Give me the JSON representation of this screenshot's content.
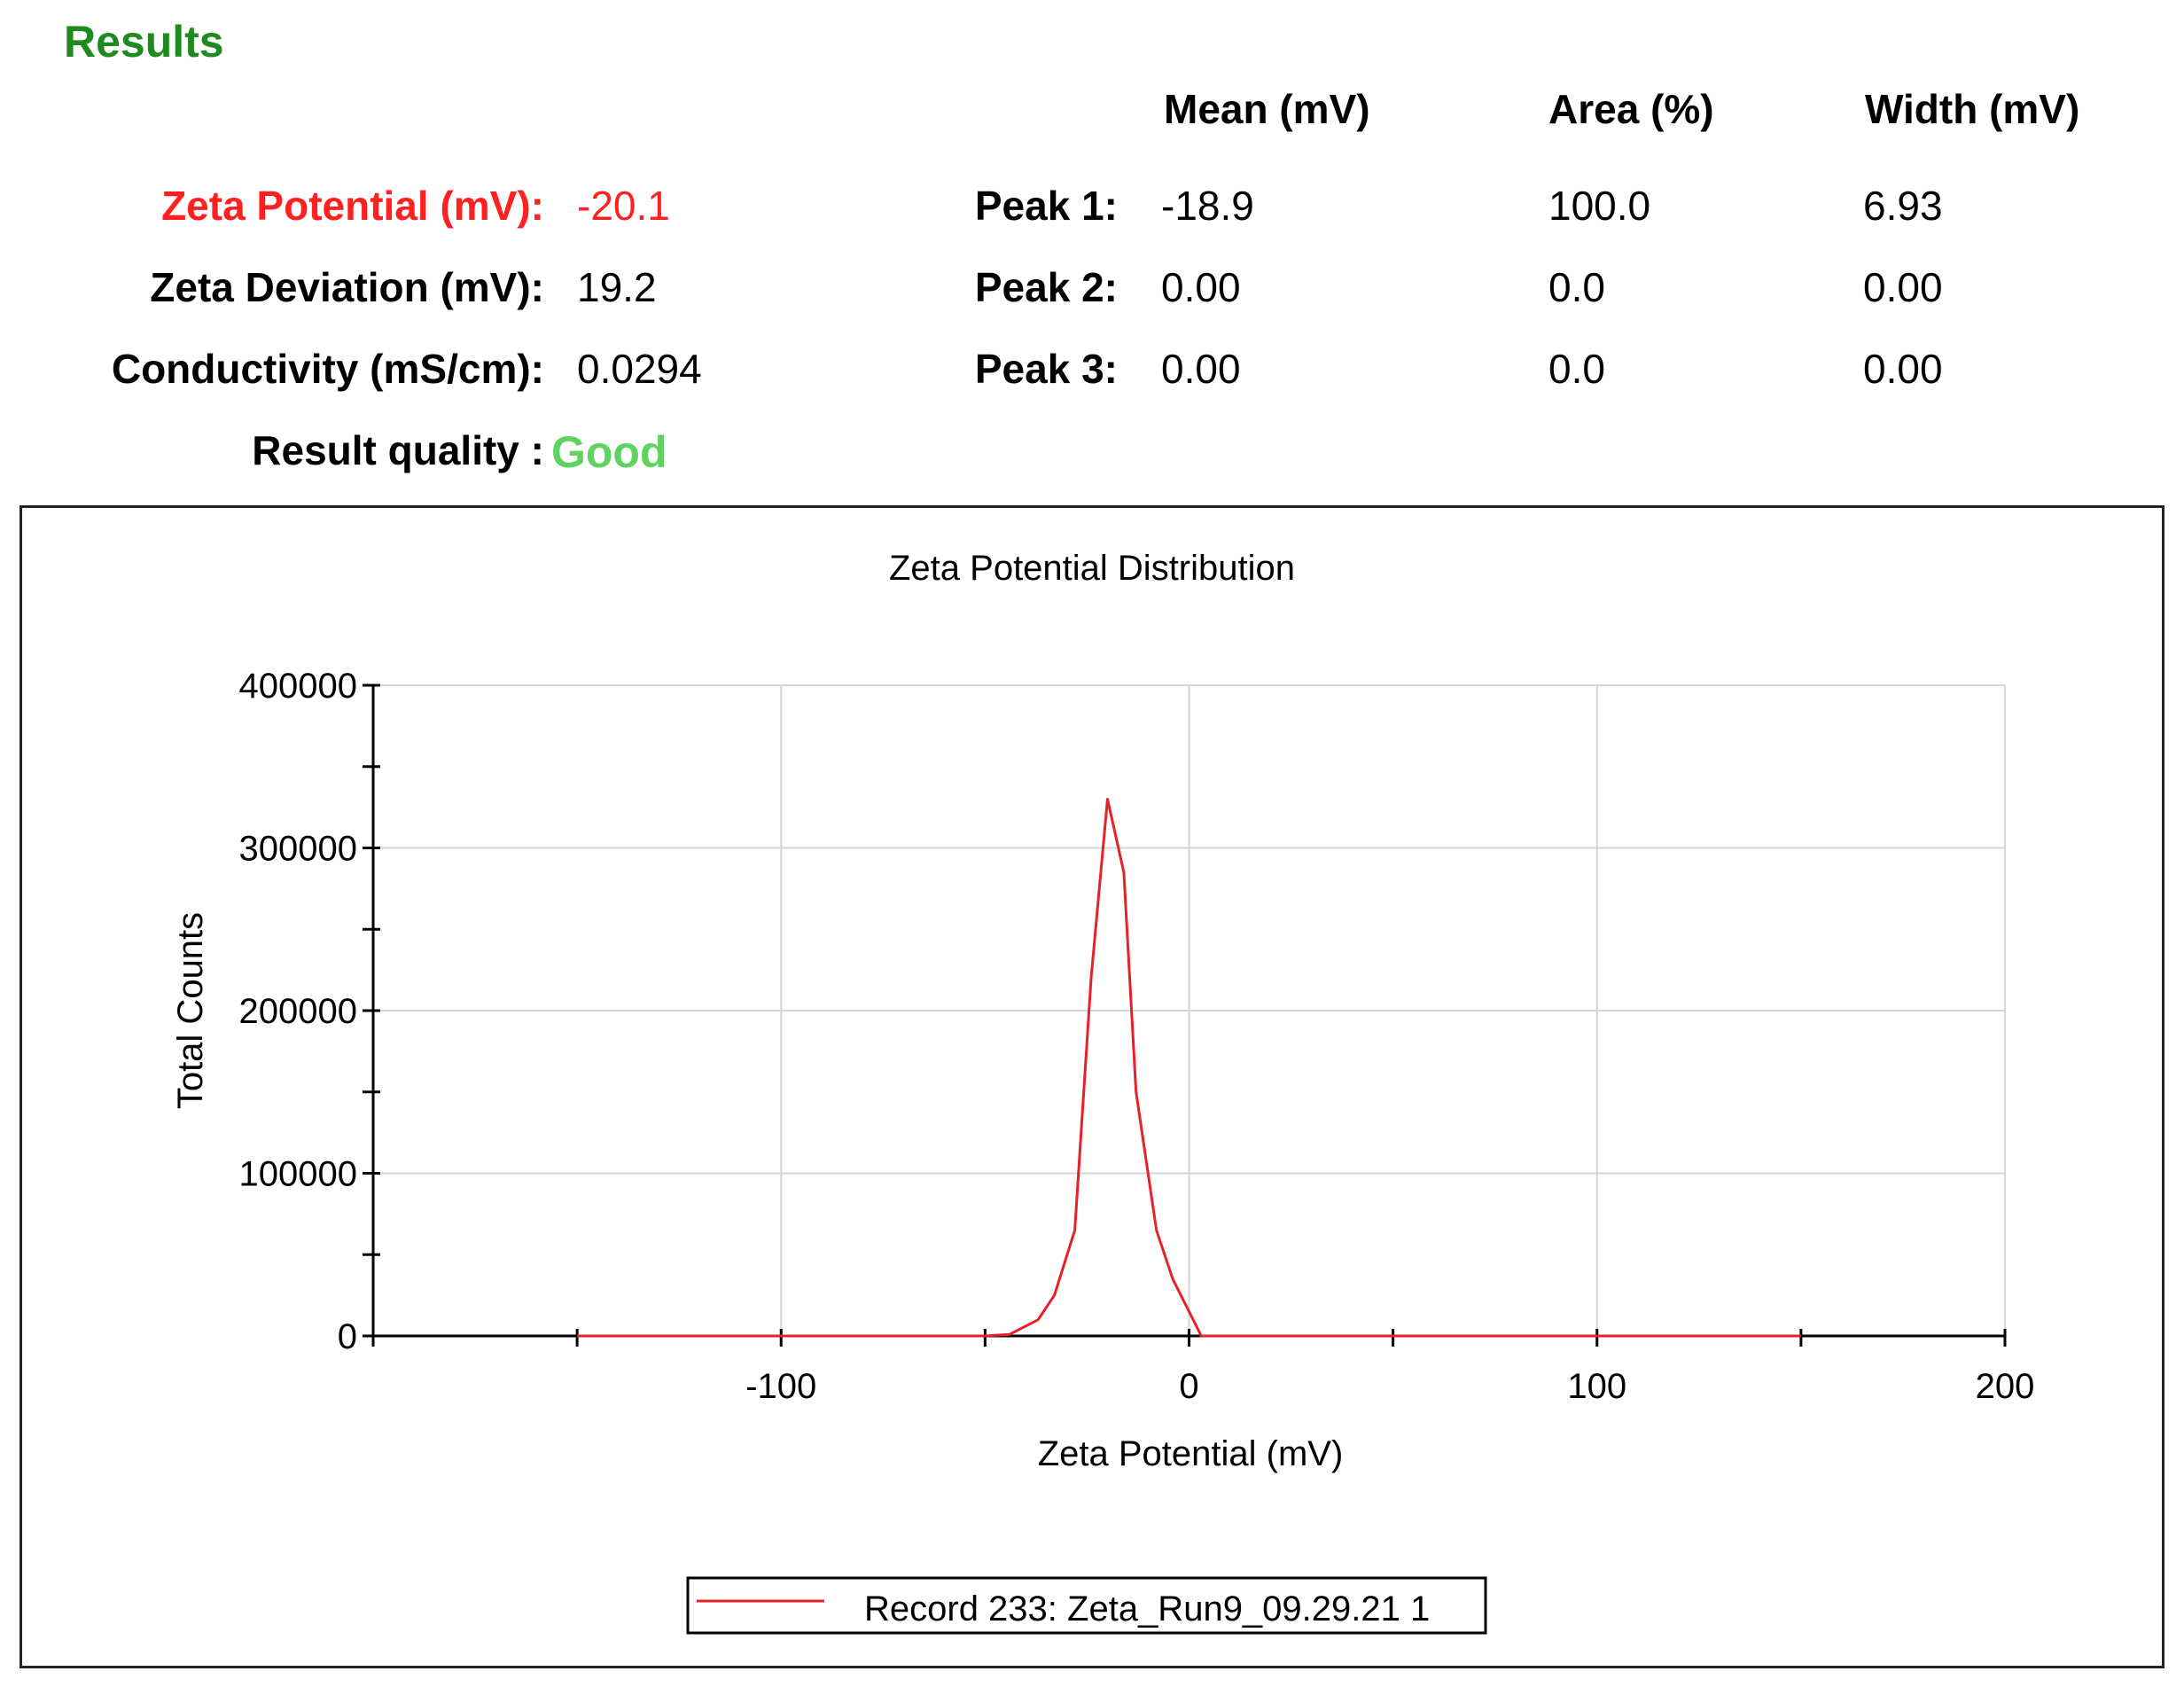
{
  "results": {
    "heading": "Results",
    "columns": {
      "mean": "Mean (mV)",
      "area": "Area (%)",
      "width": "Width (mV)"
    },
    "summary": [
      {
        "label": "Zeta Potential (mV):",
        "value": "-20.1"
      },
      {
        "label": "Zeta Deviation (mV):",
        "value": "19.2"
      },
      {
        "label": "Conductivity (mS/cm):",
        "value": "0.0294"
      }
    ],
    "quality": {
      "label": "Result quality :",
      "value": "Good"
    },
    "peaks": [
      {
        "label": "Peak 1:",
        "mean": "-18.9",
        "area": "100.0",
        "width": "6.93"
      },
      {
        "label": "Peak 2:",
        "mean": "0.00",
        "area": "0.0",
        "width": "0.00"
      },
      {
        "label": "Peak 3:",
        "mean": "0.00",
        "area": "0.0",
        "width": "0.00"
      }
    ]
  },
  "colors": {
    "heading": "#1f8a1f",
    "zeta_label": "#ff2020",
    "quality_good": "#5fd35f",
    "series": "#e8202a"
  },
  "chart_data": {
    "type": "line",
    "title": "Zeta Potential Distribution",
    "xlabel": "Zeta Potential (mV)",
    "ylabel": "Total Counts",
    "xlim": [
      -200,
      200
    ],
    "ylim": [
      0,
      400000
    ],
    "x_ticks": [
      -100,
      0,
      100,
      200
    ],
    "y_ticks": [
      0,
      100000,
      200000,
      300000,
      400000
    ],
    "grid": true,
    "legend_position": "bottom-center",
    "series": [
      {
        "name": "Record 233: Zeta_Run9_09.29.21 1",
        "color": "#e8202a",
        "x": [
          -150,
          -50,
          -44,
          -37,
          -33,
          -28,
          -24,
          -20,
          -16,
          -13,
          -8,
          -4,
          3,
          10,
          150
        ],
        "y": [
          0,
          0,
          1000,
          10000,
          25000,
          65000,
          220000,
          330000,
          285000,
          150000,
          65000,
          35000,
          0,
          0,
          0
        ]
      }
    ]
  }
}
